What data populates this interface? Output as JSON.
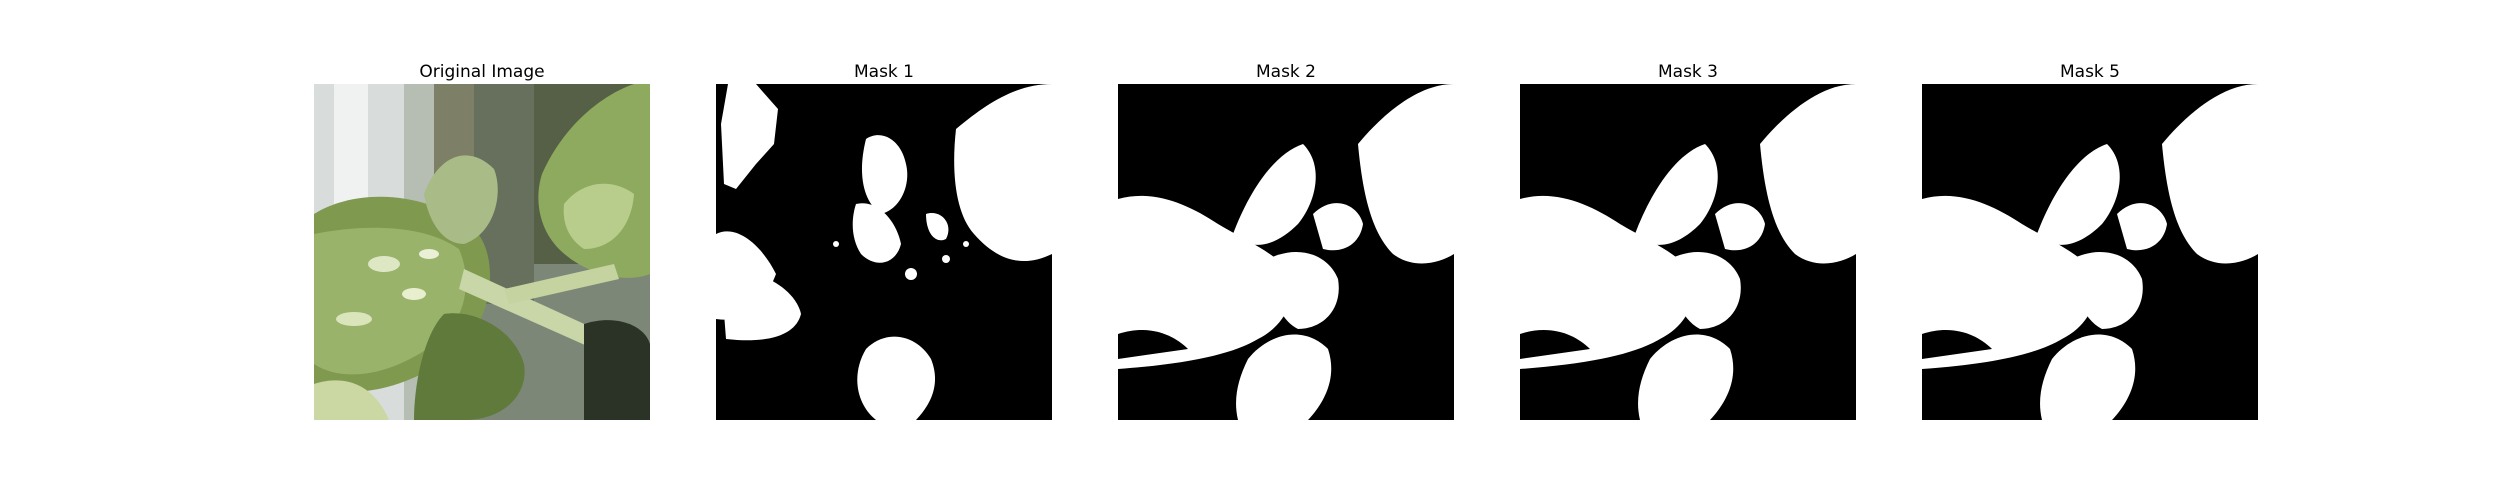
{
  "figure": {
    "panels": [
      {
        "title": "Original Image",
        "kind": "photo"
      },
      {
        "title": "Mask 1",
        "kind": "mask"
      },
      {
        "title": "Mask 2",
        "kind": "mask"
      },
      {
        "title": "Mask 3",
        "kind": "mask"
      },
      {
        "title": "Mask 5",
        "kind": "mask"
      }
    ],
    "colors": {
      "mask_foreground": "#ffffff",
      "mask_background": "#000000",
      "leaf_dark": "#4b5f31",
      "leaf_mid": "#7f9a4f",
      "leaf_light": "#c6d4a1",
      "stem": "#c8d6a8",
      "background_glass": "#d6dbd8",
      "background_wall": "#aeb6a9"
    }
  }
}
